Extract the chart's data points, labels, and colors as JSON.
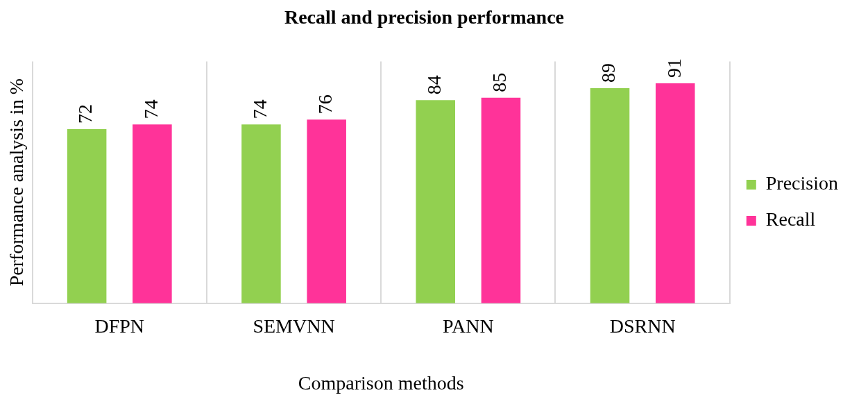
{
  "chart_data": {
    "type": "bar",
    "title": "Recall and precision performance",
    "xlabel": "Comparison methods",
    "ylabel": "Performance analysis in %",
    "categories": [
      "DFPN",
      "SEMVNN",
      "PANN",
      "DSRNN"
    ],
    "series": [
      {
        "name": "Precision",
        "color": "#92d050",
        "values": [
          72,
          74,
          84,
          89
        ]
      },
      {
        "name": "Recall",
        "color": "#ff3399",
        "values": [
          74,
          76,
          85,
          91
        ]
      }
    ],
    "data_labels": true,
    "grid": "x",
    "legend": "right"
  }
}
